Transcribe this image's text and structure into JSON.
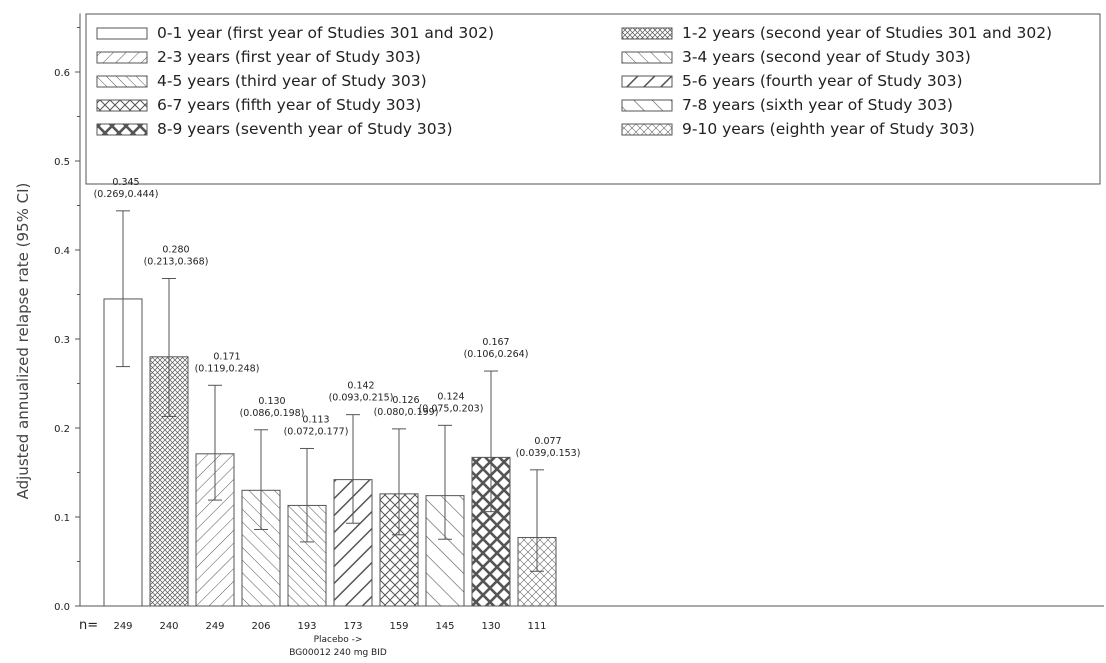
{
  "chart_data": {
    "type": "bar",
    "ylabel": "Adjusted annualized relapse rate (95% CI)",
    "xlabel_lines": [
      "Placebo ->",
      "BG00012 240 mg BID"
    ],
    "ylim": [
      0.0,
      0.65
    ],
    "y_ticks": [
      "0.0",
      "0.1",
      "0.2",
      "0.3",
      "0.4",
      "0.5",
      "0.6"
    ],
    "n_label": "n=",
    "legend_position": "top",
    "categories": [
      "0-1 year (first year of Studies 301 and 302)",
      "1-2 years (second year of Studies 301 and 302)",
      "2-3 years (first year of Study 303)",
      "3-4 years (second year of Study 303)",
      "4-5 years (third year of Study 303)",
      "5-6 years (fourth year of Study 303)",
      "6-7 years (fifth year of Study 303)",
      "7-8 years (sixth year of Study 303)",
      "8-9 years (seventh year of Study 303)",
      "9-10 years (eighth year of Study 303)"
    ],
    "values": [
      0.345,
      0.28,
      0.171,
      0.13,
      0.113,
      0.142,
      0.126,
      0.124,
      0.167,
      0.077
    ],
    "ci_low": [
      0.269,
      0.213,
      0.119,
      0.086,
      0.072,
      0.093,
      0.08,
      0.075,
      0.106,
      0.039
    ],
    "ci_high": [
      0.444,
      0.368,
      0.248,
      0.198,
      0.177,
      0.215,
      0.199,
      0.203,
      0.264,
      0.153
    ],
    "value_labels": [
      "0.345",
      "0.280",
      "0.171",
      "0.130",
      "0.113",
      "0.142",
      "0.126",
      "0.124",
      "0.167",
      "0.077"
    ],
    "ci_labels": [
      "(0.269,0.444)",
      "(0.213,0.368)",
      "(0.119,0.248)",
      "(0.086,0.198)",
      "(0.072,0.177)",
      "(0.093,0.215)",
      "(0.080,0.199)",
      "(0.075,0.203)",
      "(0.106,0.264)",
      "(0.039,0.153)"
    ],
    "n_values": [
      "249",
      "240",
      "249",
      "206",
      "193",
      "173",
      "159",
      "145",
      "130",
      "111"
    ],
    "fill_patterns": [
      "none",
      "crosshatch-fine",
      "diag-right",
      "diag-left",
      "diag-left-dense",
      "diag-right-wide",
      "crosshatch-medium",
      "diag-left-wide",
      "crosshatch-wide",
      "crosshatch-light"
    ],
    "colors": {
      "stroke": "#555555",
      "background": "#ffffff",
      "text": "#222222"
    }
  }
}
